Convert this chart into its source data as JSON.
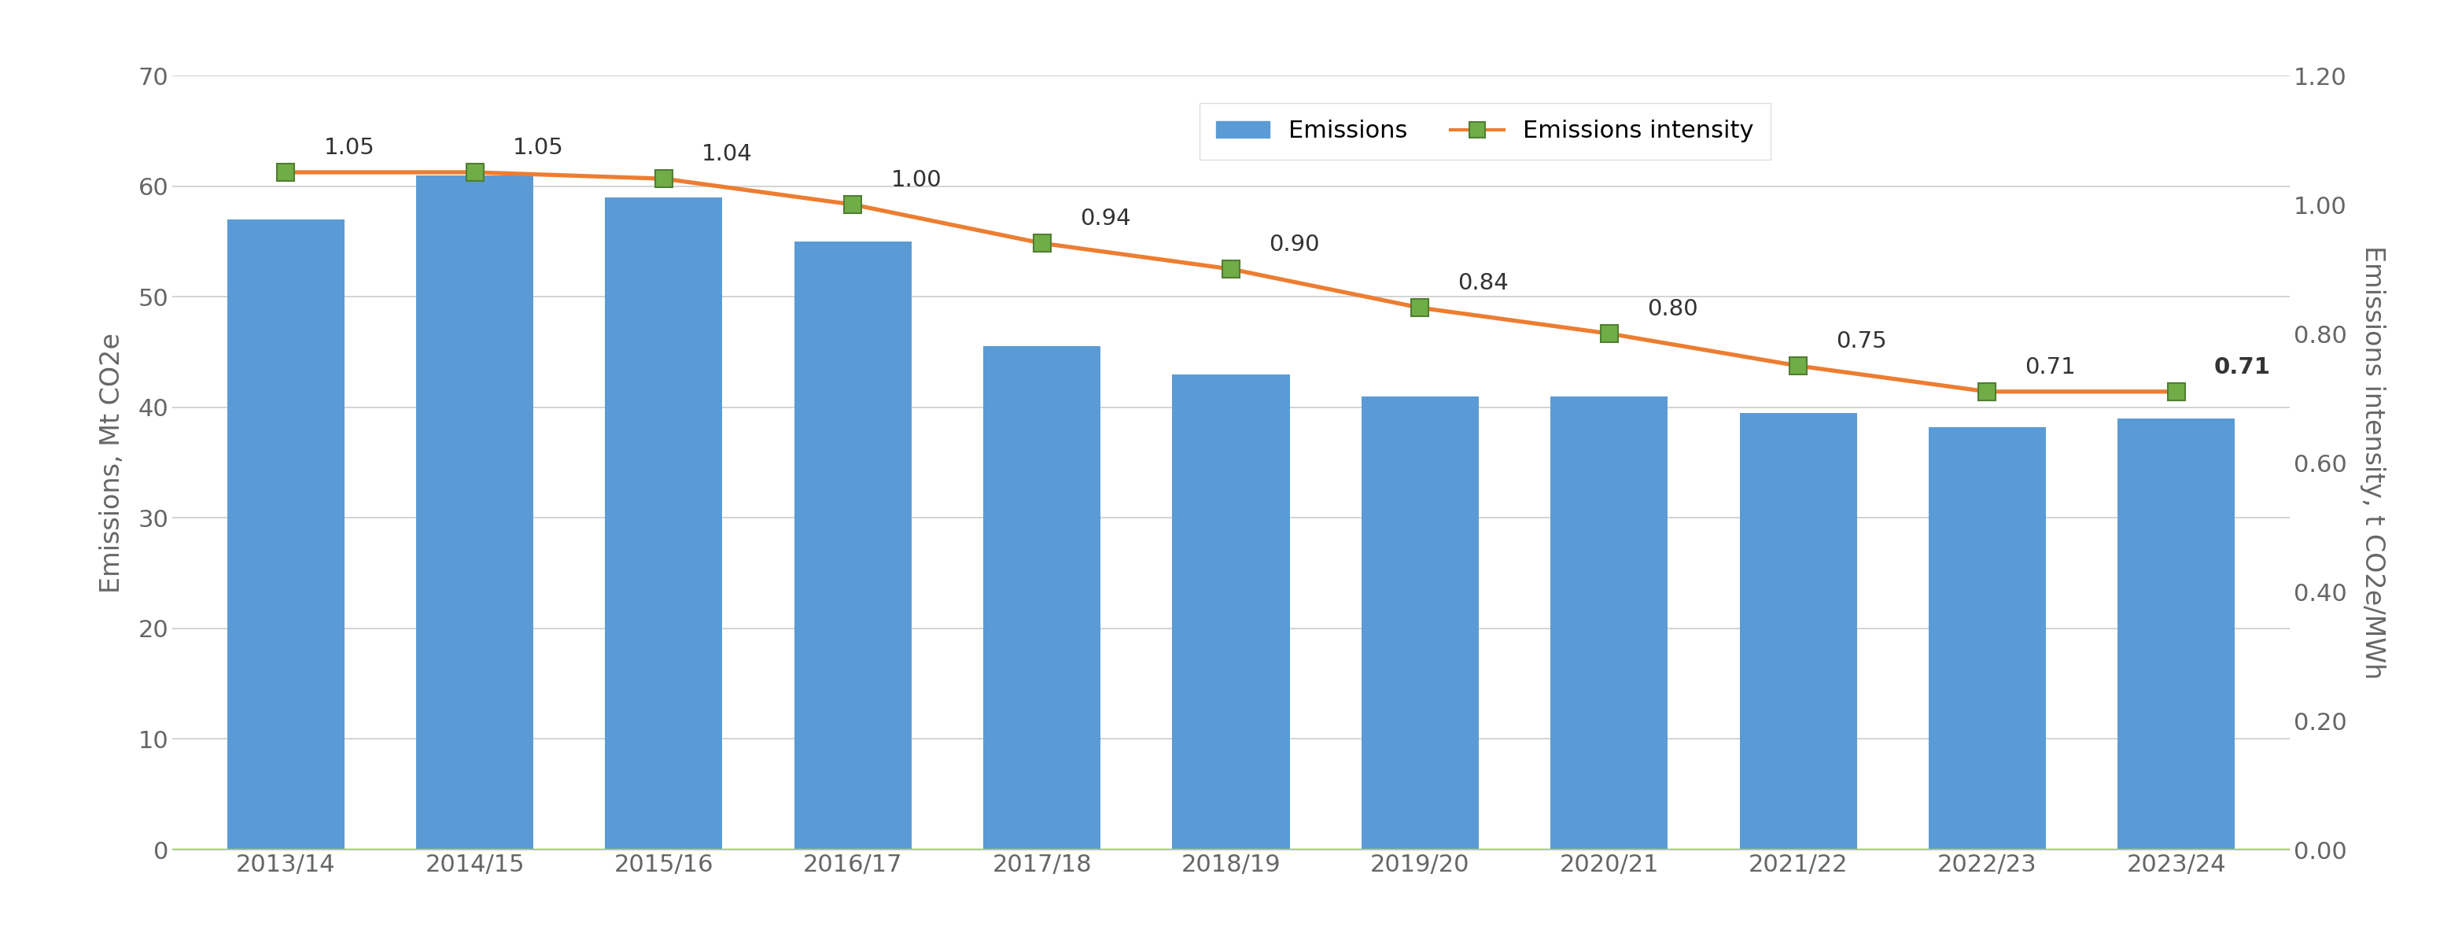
{
  "categories": [
    "2013/14",
    "2014/15",
    "2015/16",
    "2016/17",
    "2017/18",
    "2018/19",
    "2019/20",
    "2020/21",
    "2021/22",
    "2022/23",
    "2023/24"
  ],
  "emissions": [
    57.0,
    61.0,
    59.0,
    55.0,
    45.5,
    43.0,
    41.0,
    41.0,
    39.5,
    38.2,
    39.0
  ],
  "intensity": [
    1.05,
    1.05,
    1.04,
    1.0,
    0.94,
    0.9,
    0.84,
    0.8,
    0.75,
    0.71,
    0.71
  ],
  "intensity_labels": [
    "1.05",
    "1.05",
    "1.04",
    "1.00",
    "0.94",
    "0.90",
    "0.84",
    "0.80",
    "0.75",
    "0.71",
    "0.71"
  ],
  "bar_color": "#5B9BD5",
  "line_color": "#ED7D31",
  "marker_color": "#70AD47",
  "marker_edge_color": "#507E32",
  "ylabel_left": "Emissions, Mt CO2e",
  "ylabel_right": "Emissions intensity, t CO2e/MWh",
  "ylim_left": [
    0,
    70
  ],
  "ylim_right": [
    0.0,
    1.2
  ],
  "yticks_left": [
    0,
    10,
    20,
    30,
    40,
    50,
    60,
    70
  ],
  "yticks_right": [
    0.0,
    0.2,
    0.4,
    0.6,
    0.8,
    1.0,
    1.2
  ],
  "legend_labels": [
    "Emissions",
    "Emissions intensity"
  ],
  "background_color": "#FFFFFF",
  "grid_color": "#CCCCCC",
  "axis_color": "#AAAAAA",
  "label_fontsize": 24,
  "tick_fontsize": 22,
  "annotation_fontsize": 21,
  "legend_fontsize": 22,
  "bar_width": 0.62,
  "bottom_line_color": "#92D050"
}
